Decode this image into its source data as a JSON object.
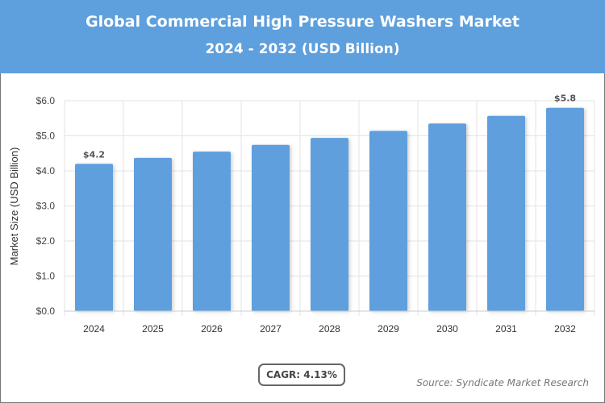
{
  "header": {
    "title": "Global Commercial High Pressure Washers Market",
    "subtitle": "2024 - 2032 (USD Billion)"
  },
  "footer": {
    "cagr": "CAGR: 4.13%",
    "source": "Source: Syndicate Market Research"
  },
  "colors": {
    "header": "#5e9fdd",
    "bar": "#5e9fdd"
  },
  "chart_data": {
    "type": "bar",
    "title": "Global Commercial High Pressure Washers Market",
    "subtitle": "2024 - 2032 (USD Billion)",
    "ylabel": "Market Size (USD Billion)",
    "xlabel": "",
    "categories": [
      "2024",
      "2025",
      "2026",
      "2027",
      "2028",
      "2029",
      "2030",
      "2031",
      "2032"
    ],
    "values": [
      4.2,
      4.37,
      4.55,
      4.74,
      4.94,
      5.14,
      5.35,
      5.57,
      5.8
    ],
    "data_labels": {
      "0": "$4.2",
      "8": "$5.8"
    },
    "ylim": [
      0,
      6
    ],
    "yticks": [
      "$0.0",
      "$1.0",
      "$2.0",
      "$3.0",
      "$4.0",
      "$5.0",
      "$6.0"
    ],
    "grid": true
  }
}
